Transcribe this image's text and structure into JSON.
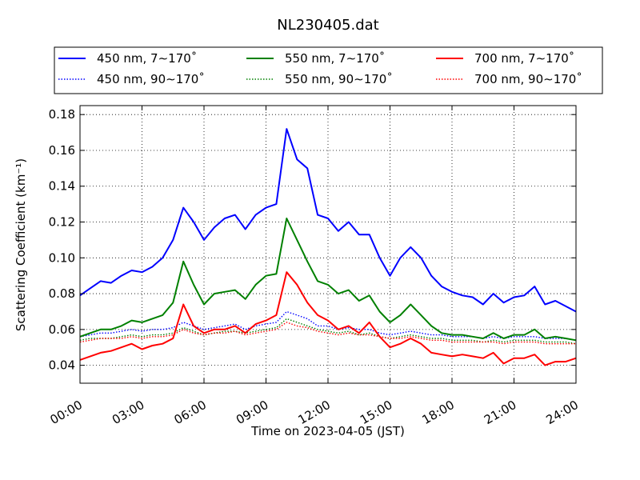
{
  "chart_data": {
    "type": "line",
    "title": "NL230405.dat",
    "xlabel": "Time on 2023-04-05 (JST)",
    "ylabel": "Scattering Coefficient (km⁻¹)",
    "xlim": [
      "00:00",
      "24:00"
    ],
    "ylim": [
      0.03,
      0.185
    ],
    "x_ticks": [
      "00:00",
      "03:00",
      "06:00",
      "09:00",
      "12:00",
      "15:00",
      "18:00",
      "21:00",
      "24:00"
    ],
    "y_ticks": [
      "0.04",
      "0.06",
      "0.08",
      "0.10",
      "0.12",
      "0.14",
      "0.16",
      "0.18"
    ],
    "grid": true,
    "legend_position": "top, above plot",
    "x": [
      "00:00",
      "00:30",
      "01:00",
      "01:30",
      "02:00",
      "02:30",
      "03:00",
      "03:30",
      "04:00",
      "04:30",
      "05:00",
      "05:30",
      "06:00",
      "06:30",
      "07:00",
      "07:30",
      "08:00",
      "08:30",
      "09:00",
      "09:30",
      "10:00",
      "10:30",
      "11:00",
      "11:30",
      "12:00",
      "12:30",
      "13:00",
      "13:30",
      "14:00",
      "14:30",
      "15:00",
      "15:30",
      "16:00",
      "16:30",
      "17:00",
      "17:30",
      "18:00",
      "18:30",
      "19:00",
      "19:30",
      "20:00",
      "20:30",
      "21:00",
      "21:30",
      "22:00",
      "22:30",
      "23:00",
      "23:30",
      "24:00"
    ],
    "series": [
      {
        "name": "450 nm, 7∼170˚",
        "color": "#0000ff",
        "style": "solid",
        "values": [
          0.079,
          0.083,
          0.087,
          0.086,
          0.09,
          0.093,
          0.092,
          0.095,
          0.1,
          0.11,
          0.128,
          0.12,
          0.11,
          0.117,
          0.122,
          0.124,
          0.116,
          0.124,
          0.128,
          0.13,
          0.172,
          0.155,
          0.15,
          0.124,
          0.122,
          0.115,
          0.12,
          0.113,
          0.113,
          0.1,
          0.09,
          0.1,
          0.106,
          0.1,
          0.09,
          0.084,
          0.081,
          0.079,
          0.078,
          0.074,
          0.08,
          0.075,
          0.078,
          0.079,
          0.084,
          0.074,
          0.076,
          0.073,
          0.07
        ]
      },
      {
        "name": "450 nm, 90∼170˚",
        "color": "#0000ff",
        "style": "dotted",
        "values": [
          0.056,
          0.057,
          0.058,
          0.058,
          0.059,
          0.06,
          0.059,
          0.06,
          0.06,
          0.061,
          0.064,
          0.062,
          0.06,
          0.061,
          0.062,
          0.063,
          0.06,
          0.062,
          0.063,
          0.064,
          0.07,
          0.068,
          0.066,
          0.062,
          0.062,
          0.06,
          0.061,
          0.06,
          0.06,
          0.058,
          0.057,
          0.058,
          0.059,
          0.058,
          0.057,
          0.057,
          0.056,
          0.056,
          0.056,
          0.055,
          0.056,
          0.055,
          0.056,
          0.056,
          0.056,
          0.055,
          0.055,
          0.055,
          0.054
        ]
      },
      {
        "name": "550 nm, 7∼170˚",
        "color": "#008000",
        "style": "solid",
        "values": [
          0.056,
          0.058,
          0.06,
          0.06,
          0.062,
          0.065,
          0.064,
          0.066,
          0.068,
          0.075,
          0.098,
          0.085,
          0.074,
          0.08,
          0.081,
          0.082,
          0.077,
          0.085,
          0.09,
          0.091,
          0.122,
          0.11,
          0.098,
          0.087,
          0.085,
          0.08,
          0.082,
          0.076,
          0.079,
          0.07,
          0.064,
          0.068,
          0.074,
          0.068,
          0.062,
          0.058,
          0.057,
          0.057,
          0.056,
          0.055,
          0.058,
          0.055,
          0.057,
          0.057,
          0.06,
          0.055,
          0.056,
          0.055,
          0.054
        ]
      },
      {
        "name": "550 nm, 90∼170˚",
        "color": "#008000",
        "style": "dotted",
        "values": [
          0.054,
          0.055,
          0.055,
          0.055,
          0.056,
          0.057,
          0.056,
          0.057,
          0.057,
          0.058,
          0.061,
          0.059,
          0.057,
          0.058,
          0.059,
          0.059,
          0.058,
          0.059,
          0.06,
          0.061,
          0.066,
          0.064,
          0.062,
          0.06,
          0.059,
          0.058,
          0.059,
          0.057,
          0.058,
          0.056,
          0.055,
          0.056,
          0.057,
          0.056,
          0.055,
          0.055,
          0.054,
          0.054,
          0.054,
          0.053,
          0.054,
          0.053,
          0.054,
          0.054,
          0.054,
          0.053,
          0.053,
          0.053,
          0.052
        ]
      },
      {
        "name": "700 nm, 7∼170˚",
        "color": "#ff0000",
        "style": "solid",
        "values": [
          0.043,
          0.045,
          0.047,
          0.048,
          0.05,
          0.052,
          0.049,
          0.051,
          0.052,
          0.055,
          0.074,
          0.062,
          0.058,
          0.06,
          0.06,
          0.062,
          0.058,
          0.063,
          0.065,
          0.068,
          0.092,
          0.085,
          0.075,
          0.068,
          0.065,
          0.06,
          0.062,
          0.058,
          0.064,
          0.056,
          0.05,
          0.052,
          0.055,
          0.052,
          0.047,
          0.046,
          0.045,
          0.046,
          0.045,
          0.044,
          0.047,
          0.041,
          0.044,
          0.044,
          0.046,
          0.04,
          0.042,
          0.042,
          0.044
        ]
      },
      {
        "name": "700 nm, 90∼170˚",
        "color": "#ff0000",
        "style": "dotted",
        "values": [
          0.053,
          0.054,
          0.055,
          0.055,
          0.055,
          0.056,
          0.055,
          0.056,
          0.056,
          0.057,
          0.06,
          0.058,
          0.057,
          0.058,
          0.058,
          0.059,
          0.057,
          0.058,
          0.059,
          0.06,
          0.064,
          0.062,
          0.061,
          0.059,
          0.058,
          0.057,
          0.058,
          0.057,
          0.057,
          0.056,
          0.055,
          0.055,
          0.056,
          0.055,
          0.054,
          0.054,
          0.053,
          0.053,
          0.053,
          0.053,
          0.053,
          0.052,
          0.053,
          0.053,
          0.053,
          0.052,
          0.052,
          0.052,
          0.052
        ]
      }
    ]
  }
}
